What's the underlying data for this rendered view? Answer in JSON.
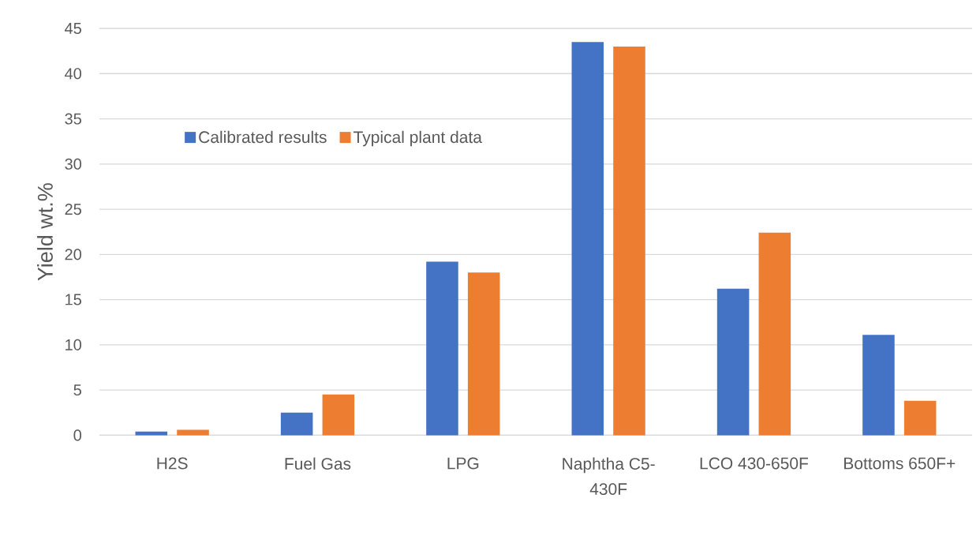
{
  "chart_data": {
    "type": "bar",
    "ylabel": "Yield wt.%",
    "categories": [
      "H2S",
      "Fuel Gas",
      "LPG",
      "Naphtha C5-430F",
      "LCO 430-650F",
      "Bottoms 650F+"
    ],
    "series": [
      {
        "name": "Calibrated results",
        "color": "#4472c4",
        "values": [
          0.4,
          2.5,
          19.2,
          43.5,
          16.2,
          11.1
        ]
      },
      {
        "name": "Typical plant data",
        "color": "#ed7d31",
        "values": [
          0.6,
          4.5,
          18.0,
          43.0,
          22.4,
          3.8
        ]
      }
    ],
    "ylim": [
      0,
      45
    ],
    "yticks": [
      0,
      5,
      10,
      15,
      20,
      25,
      30,
      35,
      40,
      45
    ],
    "grid": "y",
    "legend": "top left"
  }
}
